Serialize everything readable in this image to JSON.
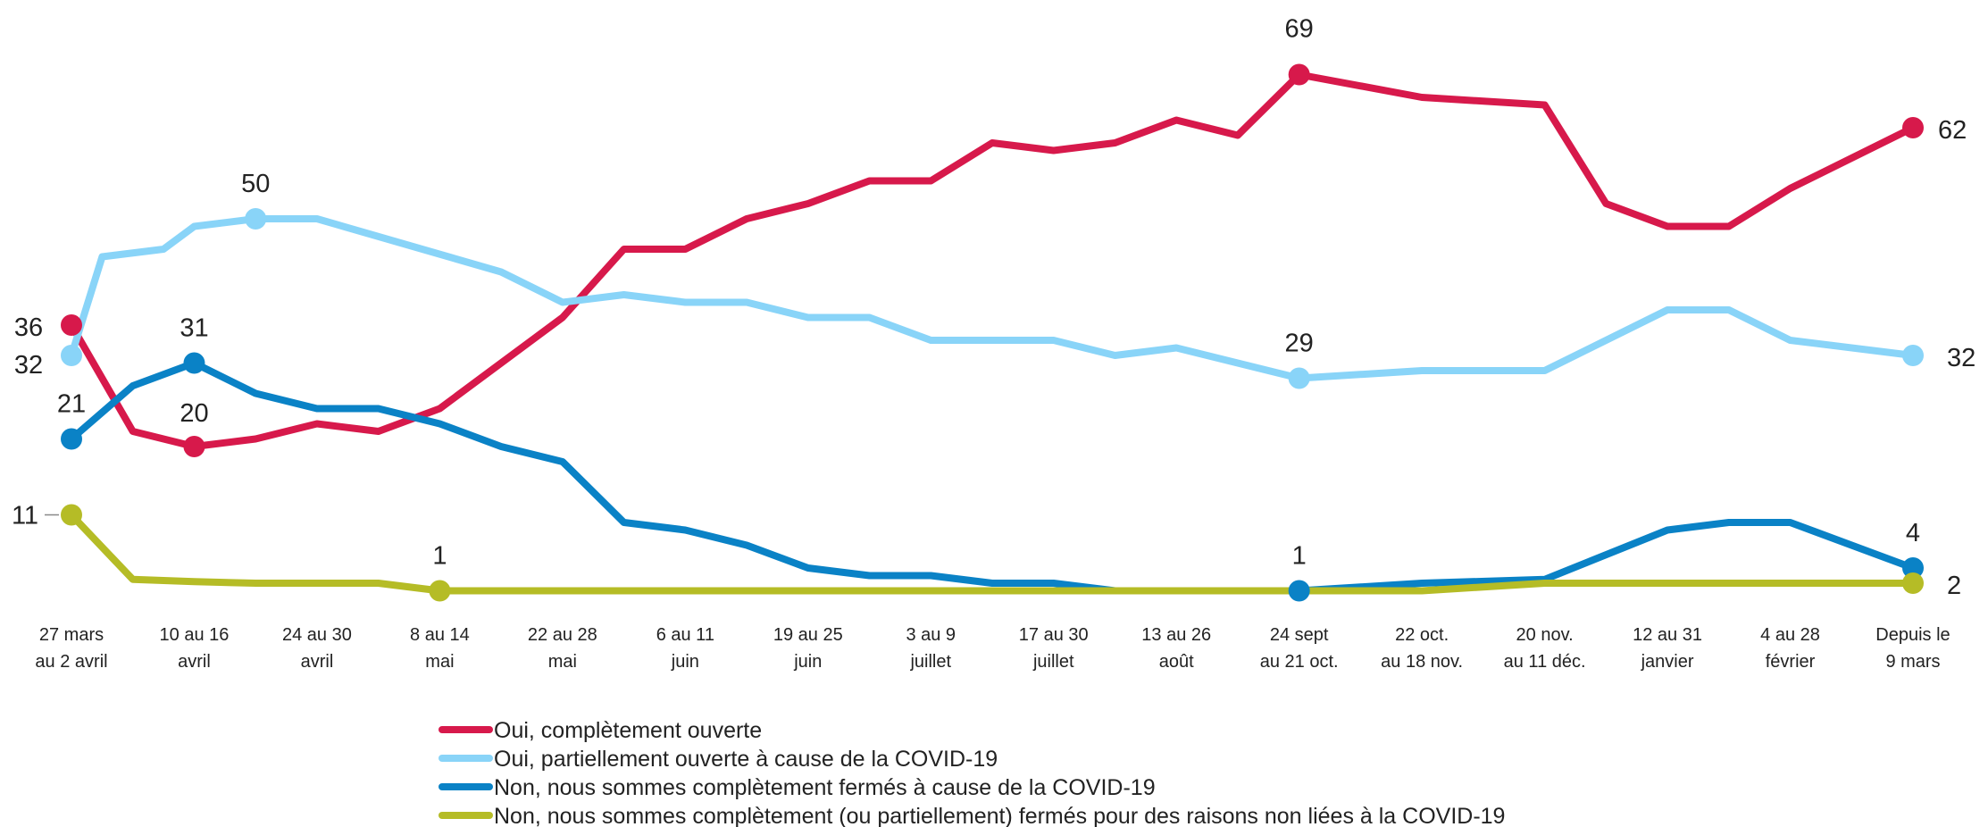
{
  "chart_data": {
    "type": "line",
    "title": "",
    "xlabel": "",
    "ylabel": "",
    "ylim": [
      0,
      70
    ],
    "grid": false,
    "legend_position": "bottom",
    "categories": [
      [
        "27 mars",
        "au 2 avril"
      ],
      [
        "10 au 16",
        "avril"
      ],
      [
        "24 au 30",
        "avril"
      ],
      [
        "8 au 14",
        "mai"
      ],
      [
        "22 au 28",
        "mai"
      ],
      [
        "6 au 11",
        "juin"
      ],
      [
        "19 au 25",
        "juin"
      ],
      [
        "3 au 9",
        "juillet"
      ],
      [
        "17 au 30",
        "juillet"
      ],
      [
        "13 au 26",
        "août"
      ],
      [
        "24 sept",
        "au 21 oct."
      ],
      [
        "22 oct.",
        "au 18 nov."
      ],
      [
        "20 nov.",
        "au 11 déc."
      ],
      [
        "12 au 31",
        "janvier"
      ],
      [
        "4 au 28",
        "février"
      ],
      [
        "Depuis le",
        "9 mars"
      ]
    ],
    "series": [
      {
        "name": "Oui, complètement ouverte",
        "color": "#d7194b",
        "x": [
          0,
          0.5,
          1,
          1.5,
          2,
          2.5,
          3,
          3.5,
          4,
          4.5,
          5,
          5.5,
          6,
          6.5,
          7,
          7.5,
          8,
          8.5,
          9,
          9.5,
          10,
          11,
          12,
          12.5,
          13,
          13.5,
          14,
          15
        ],
        "values": [
          36,
          22,
          20,
          21,
          23,
          22,
          25,
          31,
          37,
          46,
          46,
          50,
          52,
          55,
          55,
          60,
          59,
          60,
          63,
          61,
          69,
          66,
          65,
          52,
          49,
          49,
          54,
          62
        ],
        "labels": [
          {
            "i": 0,
            "text": "36"
          },
          {
            "i": 2,
            "text": "20"
          },
          {
            "i": 20,
            "text": "69"
          },
          {
            "i": 27,
            "text": "62"
          }
        ]
      },
      {
        "name": "Oui, partiellement ouverte à cause de la COVID-19",
        "color": "#89d4f8",
        "x": [
          0,
          0.25,
          0.75,
          1,
          1.5,
          2,
          3.5,
          4,
          4.5,
          5,
          5.5,
          6,
          6.5,
          7,
          7.5,
          8,
          8.5,
          9,
          10,
          11,
          12,
          13,
          13.5,
          14,
          15
        ],
        "values": [
          32,
          45,
          46,
          49,
          50,
          50,
          43,
          39,
          40,
          39,
          39,
          37,
          37,
          34,
          34,
          34,
          32,
          33,
          29,
          30,
          30,
          38,
          38,
          34,
          32
        ],
        "labels": [
          {
            "i": 0,
            "text": "32"
          },
          {
            "i": 4,
            "text": "50"
          },
          {
            "i": 18,
            "text": "29"
          },
          {
            "i": 24,
            "text": "32"
          }
        ]
      },
      {
        "name": "Non, nous sommes complètement fermés à cause de la COVID-19",
        "color": "#0a82c6",
        "x": [
          0,
          0.5,
          1,
          1.5,
          2,
          2.5,
          3,
          3.5,
          4,
          4.5,
          5,
          5.5,
          6,
          6.5,
          7,
          7.5,
          8,
          8.5,
          9,
          10,
          11,
          12,
          13,
          13.5,
          14,
          15
        ],
        "values": [
          21,
          28,
          31,
          27,
          25,
          25,
          23,
          20,
          18,
          10,
          9,
          7,
          4,
          3,
          3,
          2,
          2,
          1,
          1,
          1,
          2,
          2.5,
          9,
          10,
          10,
          4
        ],
        "labels": [
          {
            "i": 0,
            "text": "21"
          },
          {
            "i": 2,
            "text": "31"
          },
          {
            "i": 19,
            "text": "1"
          },
          {
            "i": 25,
            "text": "4"
          }
        ]
      },
      {
        "name": "Non, nous sommes complètement (ou partiellement) fermés pour des raisons non liées à la COVID-19",
        "color": "#b5bc26",
        "x": [
          0,
          0.5,
          1,
          1.5,
          2,
          2.5,
          3,
          4,
          5,
          6,
          7,
          8,
          9,
          10,
          11,
          12,
          13,
          14,
          15
        ],
        "values": [
          11,
          2.5,
          2.2,
          2,
          2,
          2,
          1,
          1,
          1,
          1,
          1,
          1,
          1,
          1,
          1,
          2,
          2,
          2,
          2
        ],
        "labels": [
          {
            "i": 0,
            "text": "11"
          },
          {
            "i": 6,
            "text": "1"
          },
          {
            "i": 18,
            "text": "2"
          }
        ]
      }
    ]
  }
}
